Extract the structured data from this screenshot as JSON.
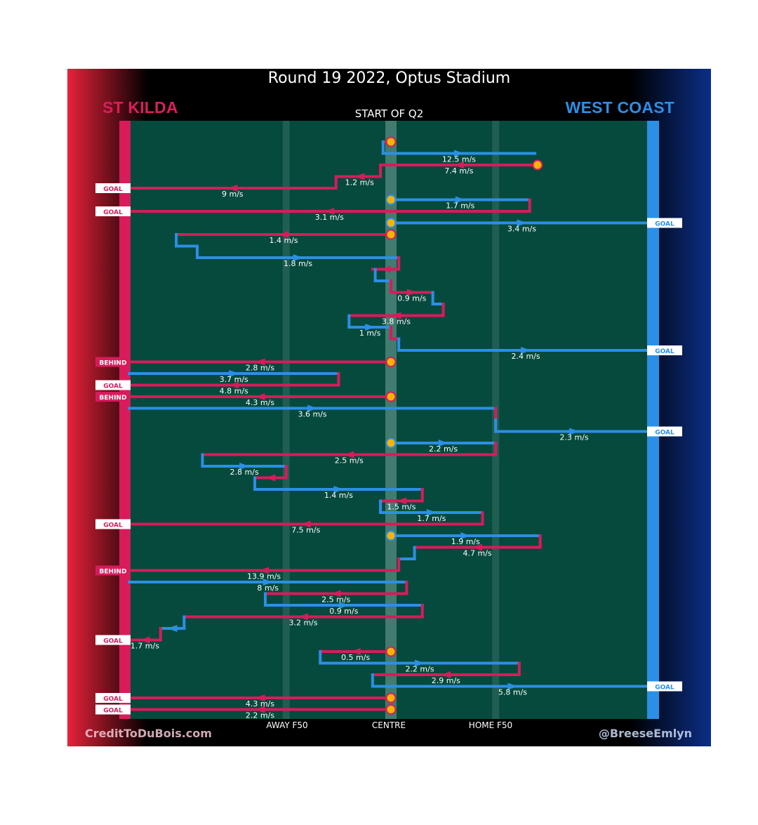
{
  "title": "Round 19 2022, Optus Stadium",
  "subtitle": "START OF Q2",
  "teams": {
    "home": "ST KILDA",
    "away": "WEST COAST"
  },
  "lanes": {
    "away_f50": "AWAY F50",
    "centre": "CENTRE",
    "home_f50": "HOME F50"
  },
  "credits": {
    "left": "CreditToDuBois.com",
    "right": "@BreeseEmlyn"
  },
  "colors": {
    "st_kilda": "#d81b5b",
    "west_coast": "#2b8fe6",
    "field": "#054a3c",
    "marker": "#f5b400"
  },
  "chart_data": {
    "type": "chain-timeline",
    "description_axis": "ground position from St Kilda goal (0) to West Coast goal (100)",
    "xlim": [
      0,
      100
    ],
    "lanes": [
      {
        "label": "AWAY F50",
        "x": 30
      },
      {
        "label": "CENTRE",
        "x": 50
      },
      {
        "label": "HOME F50",
        "x": 70
      }
    ],
    "chains": [
      {
        "segments": [
          {
            "team": "stk",
            "from": 50,
            "to": 48.5,
            "label": ""
          },
          {
            "team": "wce",
            "from": 48.5,
            "to": 77.5,
            "label": "12.5 m/s"
          }
        ]
      },
      {
        "segments": [
          {
            "team": "stk",
            "from": 78,
            "to": 48,
            "label": "7.4 m/s"
          },
          {
            "team": "stk",
            "from": 48,
            "to": 40,
            "label": "1.2 m/s"
          },
          {
            "team": "stk",
            "from": 39.5,
            "to": 0,
            "label": "9 m/s",
            "result": "GOAL"
          }
        ]
      },
      {
        "segments": [
          {
            "team": "wce",
            "from": 50,
            "to": 76.5,
            "label": "1.7 m/s"
          },
          {
            "team": "stk",
            "from": 76.5,
            "to": 0,
            "label": "3.1 m/s",
            "result": "GOAL"
          }
        ]
      },
      {
        "segments": [
          {
            "team": "wce",
            "from": 50,
            "to": 100,
            "label": "3.4 m/s",
            "result": "GOAL"
          }
        ]
      },
      {
        "segments": [
          {
            "team": "stk",
            "from": 50,
            "to": 9,
            "label": "1.4 m/s"
          },
          {
            "team": "wce",
            "from": 9,
            "to": 13,
            "label": ""
          },
          {
            "team": "wce",
            "from": 13,
            "to": 51.5,
            "label": "1.8 m/s"
          },
          {
            "team": "stk",
            "from": 51.5,
            "to": 46.5,
            "label": ""
          },
          {
            "team": "wce",
            "from": 47,
            "to": 50,
            "label": ""
          },
          {
            "team": "stk",
            "from": 50,
            "to": 58,
            "label": "0.9 m/s"
          },
          {
            "team": "wce",
            "from": 58,
            "to": 60,
            "label": ""
          },
          {
            "team": "stk",
            "from": 60,
            "to": 42,
            "label": "3.8 m/s"
          },
          {
            "team": "wce",
            "from": 42,
            "to": 50,
            "label": "1 m/s"
          },
          {
            "team": "stk",
            "from": 50,
            "to": 51.5,
            "label": ""
          },
          {
            "team": "wce",
            "from": 51.5,
            "to": 100,
            "label": "2.4 m/s",
            "result": "GOAL"
          }
        ]
      },
      {
        "segments": [
          {
            "team": "stk",
            "from": 50,
            "to": 0,
            "label": "2.8 m/s",
            "result": "BEHIND"
          }
        ]
      },
      {
        "segments": [
          {
            "team": "wce",
            "from": 0,
            "to": 40,
            "label": "3.7 m/s"
          },
          {
            "team": "stk",
            "from": 40,
            "to": 0,
            "label": "4.8 m/s",
            "result": "GOAL"
          }
        ]
      },
      {
        "segments": [
          {
            "team": "stk",
            "from": 50,
            "to": 0,
            "label": "4.3 m/s",
            "result": "BEHIND"
          }
        ]
      },
      {
        "segments": [
          {
            "team": "wce",
            "from": 0,
            "to": 70,
            "label": "3.6 m/s"
          },
          {
            "team": "stk",
            "from": 70,
            "to": 70,
            "label": ""
          },
          {
            "team": "wce",
            "from": 70,
            "to": 100,
            "label": "2.3 m/s",
            "result": "GOAL"
          }
        ]
      },
      {
        "segments": [
          {
            "team": "wce",
            "from": 50,
            "to": 70,
            "label": "2.2 m/s"
          },
          {
            "team": "stk",
            "from": 70,
            "to": 14,
            "label": "2.5 m/s"
          },
          {
            "team": "wce",
            "from": 14,
            "to": 30,
            "label": "2.8 m/s"
          },
          {
            "team": "stk",
            "from": 30,
            "to": 24,
            "label": ""
          },
          {
            "team": "wce",
            "from": 24,
            "to": 56,
            "label": "1.4 m/s"
          },
          {
            "team": "stk",
            "from": 56,
            "to": 48,
            "label": "1.5 m/s"
          },
          {
            "team": "wce",
            "from": 48,
            "to": 67.5,
            "label": "1.7 m/s"
          },
          {
            "team": "stk",
            "from": 67.5,
            "to": 0,
            "label": "7.5 m/s",
            "result": "GOAL"
          }
        ]
      },
      {
        "segments": [
          {
            "team": "wce",
            "from": 50,
            "to": 78.5,
            "label": "1.9 m/s"
          },
          {
            "team": "stk",
            "from": 78.5,
            "to": 54.5,
            "label": "4.7 m/s"
          },
          {
            "team": "wce",
            "from": 54.5,
            "to": 51.5,
            "label": ""
          },
          {
            "team": "stk",
            "from": 51.5,
            "to": 0,
            "label": "13.9 m/s",
            "result": "BEHIND"
          }
        ]
      },
      {
        "segments": [
          {
            "team": "wce",
            "from": 0,
            "to": 53,
            "label": "8 m/s"
          },
          {
            "team": "stk",
            "from": 53,
            "to": 26,
            "label": "2.5 m/s"
          },
          {
            "team": "wce",
            "from": 26,
            "to": 56,
            "label": "0.9 m/s"
          },
          {
            "team": "stk",
            "from": 56,
            "to": 10.5,
            "label": "3.2 m/s"
          },
          {
            "team": "wce",
            "from": 10.5,
            "to": 6,
            "label": ""
          },
          {
            "team": "stk",
            "from": 6,
            "to": 0,
            "label": "1.7 m/s",
            "result": "GOAL"
          }
        ]
      },
      {
        "segments": [
          {
            "team": "stk",
            "from": 50,
            "to": 36.5,
            "label": "0.5 m/s"
          },
          {
            "team": "wce",
            "from": 36.5,
            "to": 74.5,
            "label": "2.2 m/s"
          },
          {
            "team": "stk",
            "from": 74.5,
            "to": 46.5,
            "label": "2.9 m/s"
          },
          {
            "team": "wce",
            "from": 46.5,
            "to": 100,
            "label": "5.8 m/s",
            "result": "GOAL"
          }
        ]
      },
      {
        "segments": [
          {
            "team": "stk",
            "from": 50,
            "to": 0,
            "label": "4.3 m/s",
            "result": "GOAL"
          }
        ]
      },
      {
        "segments": [
          {
            "team": "stk",
            "from": 50,
            "to": 0,
            "label": "2.2 m/s",
            "result": "GOAL"
          }
        ]
      }
    ]
  }
}
